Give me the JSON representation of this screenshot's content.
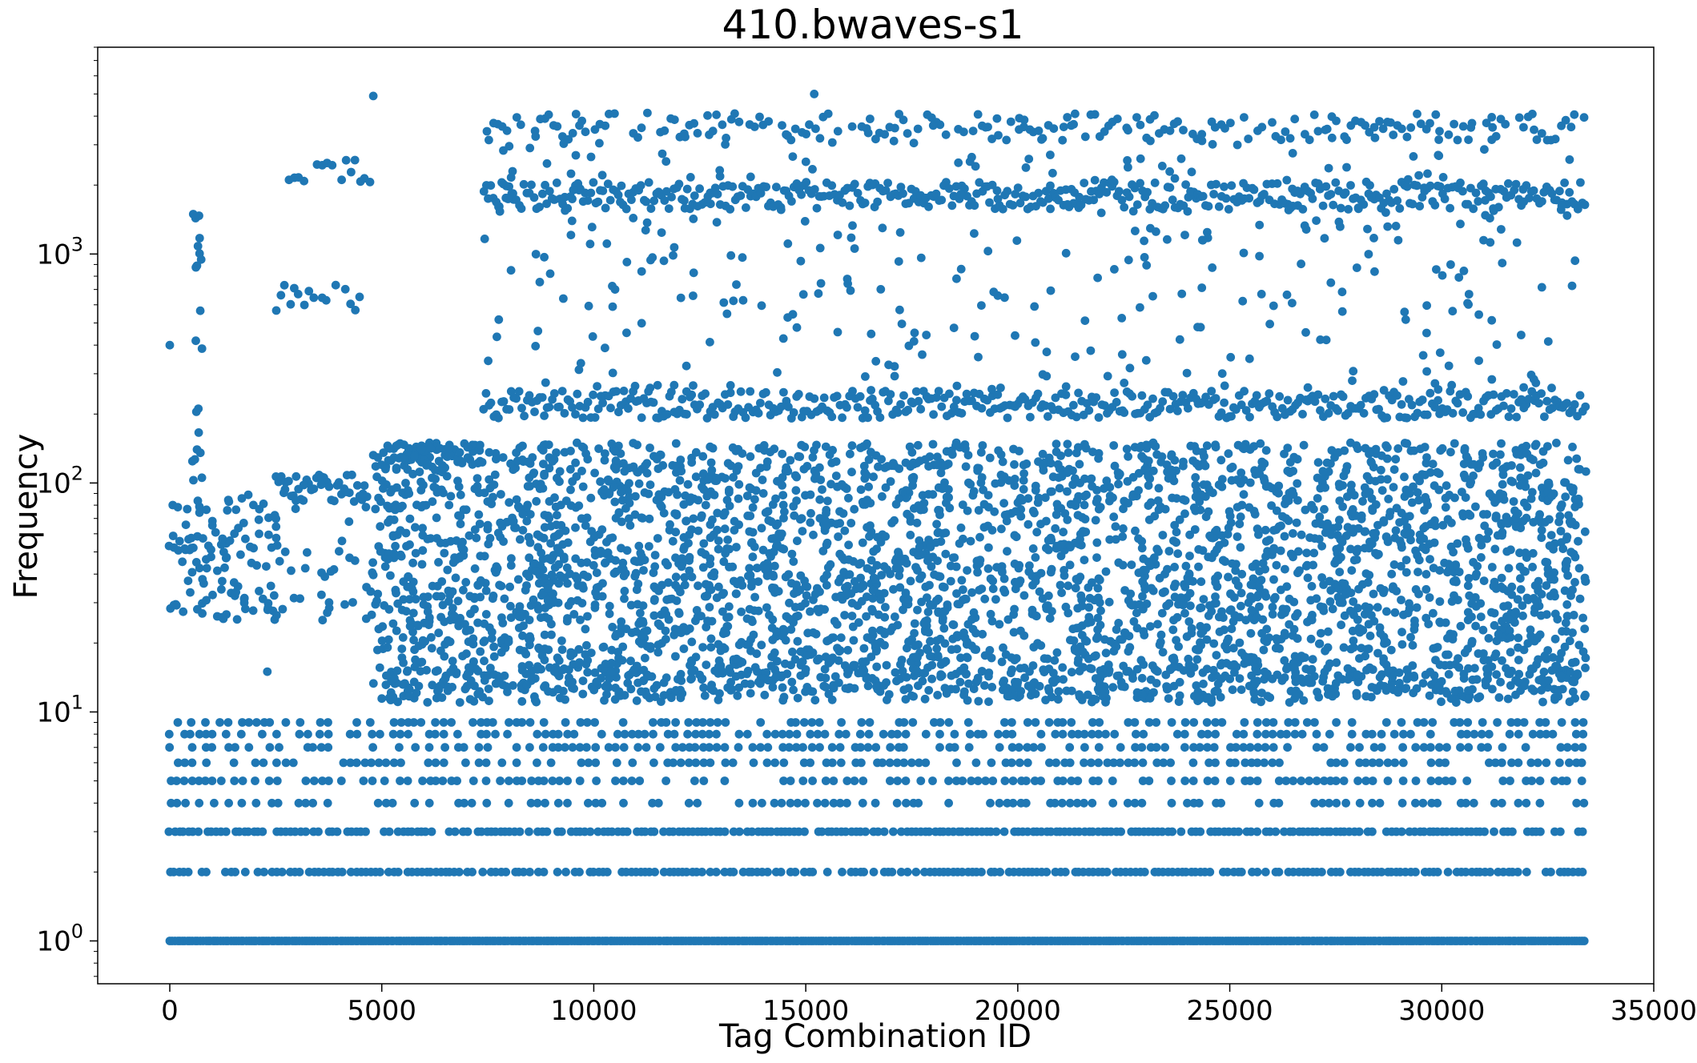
{
  "chart_data": {
    "type": "scatter",
    "title": "410.bwaves-s1",
    "xlabel": "Tag Combination ID",
    "ylabel": "Frequency",
    "x_scale": "linear",
    "y_scale": "log",
    "xlim": [
      -1700,
      35000
    ],
    "ylim": [
      0.65,
      8000
    ],
    "x_ticks": [
      0,
      5000,
      10000,
      15000,
      20000,
      25000,
      30000,
      35000
    ],
    "x_tick_labels": [
      "0",
      "5000",
      "10000",
      "15000",
      "20000",
      "25000",
      "30000",
      "35000"
    ],
    "y_ticks": [
      1,
      10,
      100,
      1000
    ],
    "y_tick_labels": [
      "10^0",
      "10^1",
      "10^2",
      "10^3"
    ],
    "grid": false,
    "legend": "none",
    "marker_color": "#1f77b4",
    "x_range_data": [
      0,
      33400
    ],
    "series": [
      {
        "bands": [
          {
            "y": 1,
            "x": [
              0,
              33400
            ],
            "density": "continuous"
          },
          {
            "y": 2,
            "x": [
              0,
              33400
            ],
            "density": "dense"
          },
          {
            "y": 3,
            "x": [
              0,
              33400
            ],
            "density": "dense"
          },
          {
            "y": 4,
            "x": [
              0,
              33400
            ],
            "density": "medium"
          },
          {
            "y": 5,
            "x": [
              0,
              33400
            ],
            "density": "medium"
          },
          {
            "y": 6,
            "x": [
              0,
              33400
            ],
            "density": "medium"
          },
          {
            "y": 7,
            "x": [
              0,
              33400
            ],
            "density": "medium"
          },
          {
            "y": 8,
            "x": [
              0,
              33400
            ],
            "density": "medium"
          },
          {
            "y": 9,
            "x": [
              0,
              33400
            ],
            "density": "medium"
          },
          {
            "y": 30,
            "x": [
              0,
              2600
            ],
            "density": "dense"
          },
          {
            "y": 55,
            "x": [
              0,
              2600
            ],
            "density": "dense"
          },
          {
            "y": 95,
            "x": [
              2500,
              4700
            ],
            "density": "continuous"
          },
          {
            "y": 650,
            "x": [
              2500,
              4700
            ],
            "density": "dense"
          },
          {
            "y": 2350,
            "x": [
              2500,
              4700
            ],
            "density": "dense"
          },
          {
            "y": 130,
            "x": [
              4800,
              7400
            ],
            "density": "continuous"
          },
          {
            "y": 220,
            "x": [
              7400,
              33400
            ],
            "density": "continuous"
          },
          {
            "y": 1800,
            "x": [
              7400,
              33400
            ],
            "density": "continuous"
          },
          {
            "y": 3600,
            "x": [
              7400,
              33400
            ],
            "density": "dense"
          },
          {
            "y": 14,
            "x": [
              5000,
              33400
            ],
            "density": "dense"
          }
        ],
        "clouds": [
          {
            "x": [
              0,
              2500
            ],
            "y": [
              25,
              90
            ],
            "density": "dense"
          },
          {
            "x": [
              2500,
              4800
            ],
            "y": [
              25,
              100
            ],
            "density": "medium"
          },
          {
            "x": [
              4800,
              33400
            ],
            "y": [
              11,
              150
            ],
            "density": "continuous"
          },
          {
            "x": [
              7400,
              33400
            ],
            "y": [
              250,
              3800
            ],
            "density": "sparse"
          },
          {
            "x": [
              500,
              800
            ],
            "y": [
              100,
              1800
            ],
            "density": "dense"
          }
        ],
        "highlights": [
          {
            "x": 4800,
            "y": 4900
          },
          {
            "x": 15200,
            "y": 5000
          },
          {
            "x": 0,
            "y": 400
          },
          {
            "x": 2300,
            "y": 15
          }
        ]
      }
    ]
  }
}
